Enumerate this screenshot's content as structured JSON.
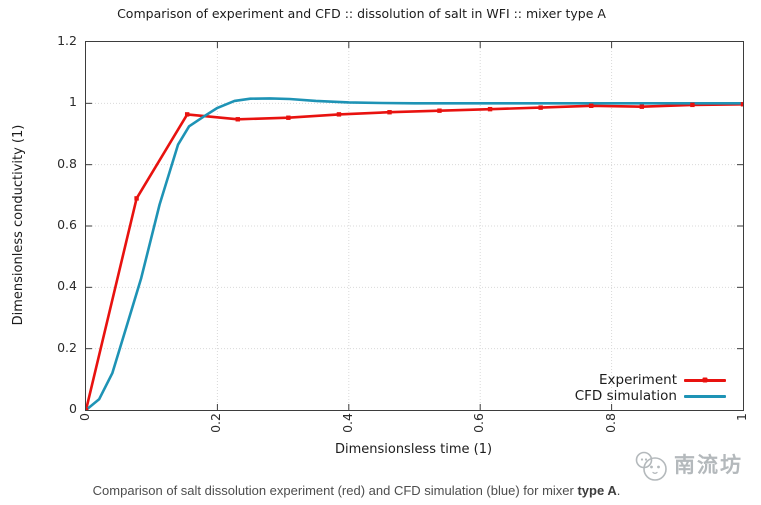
{
  "chart_data": {
    "type": "line",
    "title": "Comparison of experiment and CFD :: dissolution of salt in WFI :: mixer type A",
    "xlabel": "Dimensionsless time (1)",
    "ylabel": "Dimensionless conductivity (1)",
    "xlim": [
      0,
      1
    ],
    "ylim": [
      0,
      1.2
    ],
    "xtick_values": [
      0,
      0.2,
      0.4,
      0.6,
      0.8,
      1
    ],
    "xtick_labels": [
      "0",
      "0.2",
      "0.4",
      "0.6",
      "0.8",
      "1"
    ],
    "ytick_values": [
      0,
      0.2,
      0.4,
      0.6,
      0.8,
      1,
      1.2
    ],
    "ytick_labels": [
      "0",
      "0.2",
      "0.4",
      "0.6",
      "0.8",
      "1",
      "1.2"
    ],
    "grid": true,
    "legend_position": "bottom-right",
    "series": [
      {
        "name": "Experiment",
        "color": "#e8120f",
        "marker": true,
        "x": [
          0,
          0.077,
          0.154,
          0.231,
          0.308,
          0.385,
          0.462,
          0.538,
          0.615,
          0.692,
          0.769,
          0.846,
          0.923,
          1.0
        ],
        "y": [
          0,
          0.69,
          0.964,
          0.948,
          0.953,
          0.964,
          0.971,
          0.976,
          0.981,
          0.986,
          0.992,
          0.989,
          0.995,
          0.997
        ]
      },
      {
        "name": "CFD simulation",
        "color": "#1e93b5",
        "marker": false,
        "x": [
          0,
          0.02,
          0.04,
          0.06,
          0.084,
          0.112,
          0.14,
          0.157,
          0.18,
          0.2,
          0.226,
          0.25,
          0.28,
          0.31,
          0.35,
          0.4,
          0.45,
          0.5,
          0.6,
          0.7,
          0.8,
          0.9,
          1.0
        ],
        "y": [
          0,
          0.035,
          0.12,
          0.26,
          0.43,
          0.67,
          0.865,
          0.925,
          0.958,
          0.985,
          1.008,
          1.015,
          1.016,
          1.014,
          1.008,
          1.003,
          1.001,
          1.0,
          1.0,
          1.0,
          1.0,
          1.0,
          1.0
        ]
      }
    ]
  },
  "caption": {
    "prefix": "Comparison of salt dissolution experiment (red) and CFD simulation (blue) for mixer ",
    "bold": "type A",
    "suffix": "."
  },
  "watermark": {
    "text": "南流坊"
  },
  "colors": {
    "axis": "#3d3d3d",
    "grid": "#d9d9d9",
    "title": "#1c1c1c",
    "caption": "#4d4d4d",
    "watermark": "#b4b9bc"
  }
}
